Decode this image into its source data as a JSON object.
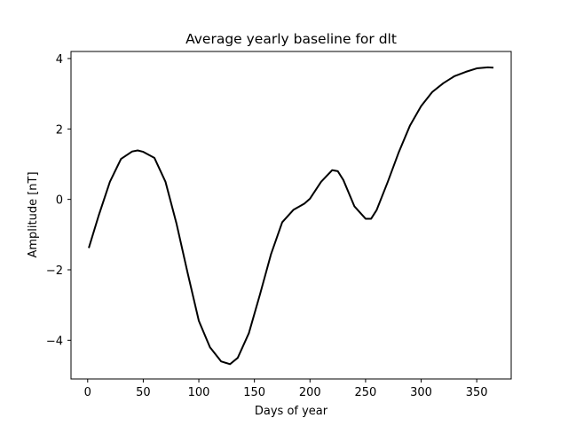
{
  "chart_data": {
    "type": "line",
    "title": "Average yearly baseline for dlt",
    "xlabel": "Days of year",
    "ylabel": "Amplitude [nT]",
    "xlim": [
      -15,
      381
    ],
    "ylim": [
      -5.1,
      4.2
    ],
    "xticks": [
      0,
      50,
      100,
      150,
      200,
      250,
      300,
      350
    ],
    "yticks": [
      -4,
      -2,
      0,
      2,
      4
    ],
    "xtick_labels": [
      "0",
      "50",
      "100",
      "150",
      "200",
      "250",
      "300",
      "350"
    ],
    "ytick_labels": [
      "−4",
      "−2",
      "0",
      "2",
      "4"
    ],
    "grid": false,
    "series": [
      {
        "color": "#000000",
        "x": [
          1,
          10,
          20,
          30,
          40,
          45,
          50,
          60,
          70,
          80,
          90,
          100,
          110,
          120,
          128,
          135,
          145,
          155,
          165,
          175,
          185,
          195,
          200,
          210,
          220,
          225,
          230,
          240,
          250,
          255,
          260,
          270,
          280,
          290,
          300,
          310,
          320,
          330,
          340,
          350,
          360,
          365
        ],
        "y": [
          -1.38,
          -0.45,
          0.5,
          1.15,
          1.36,
          1.39,
          1.35,
          1.18,
          0.5,
          -0.7,
          -2.1,
          -3.45,
          -4.2,
          -4.6,
          -4.68,
          -4.5,
          -3.8,
          -2.7,
          -1.55,
          -0.65,
          -0.3,
          -0.12,
          0.02,
          0.5,
          0.83,
          0.8,
          0.55,
          -0.2,
          -0.55,
          -0.55,
          -0.3,
          0.5,
          1.35,
          2.1,
          2.65,
          3.05,
          3.3,
          3.5,
          3.62,
          3.72,
          3.75,
          3.74
        ]
      }
    ]
  }
}
